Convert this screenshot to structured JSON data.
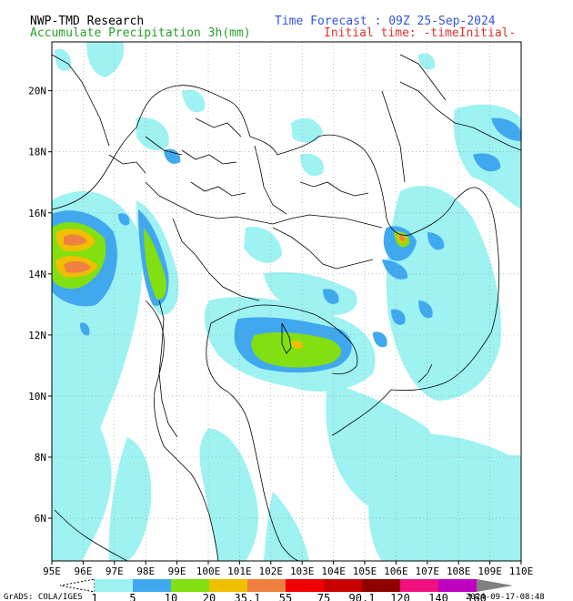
{
  "header": {
    "org": "NWP-TMD Research",
    "product": "Accumulate Precipitation 3h(mm)",
    "forecast": "Time Forecast : 09Z 25-Sep-2024",
    "initial": "Initial time: -timeInitial-"
  },
  "axes": {
    "lon_labels": [
      "95E",
      "96E",
      "97E",
      "98E",
      "99E",
      "100E",
      "101E",
      "102E",
      "103E",
      "104E",
      "105E",
      "106E",
      "107E",
      "108E",
      "109E",
      "110E"
    ],
    "lat_labels": [
      "6N",
      "8N",
      "10N",
      "12N",
      "14N",
      "16N",
      "18N",
      "20N"
    ],
    "lon_range": [
      95,
      110
    ],
    "lat_range": [
      4.6,
      21.6
    ]
  },
  "colorbar": {
    "levels": [
      "1",
      "5",
      "10",
      "20",
      "35.1",
      "55",
      "75",
      "90.1",
      "120",
      "140",
      "160"
    ],
    "colors": [
      "#9ef2f2",
      "#40a8ee",
      "#82e010",
      "#f0c000",
      "#f08040",
      "#f00000",
      "#c80000",
      "#900000",
      "#f01080",
      "#c000c0",
      "#808080"
    ]
  },
  "footer": {
    "credit": "GrADS: COLA/IGES",
    "timestamp": "2024-09-17-08:48"
  }
}
